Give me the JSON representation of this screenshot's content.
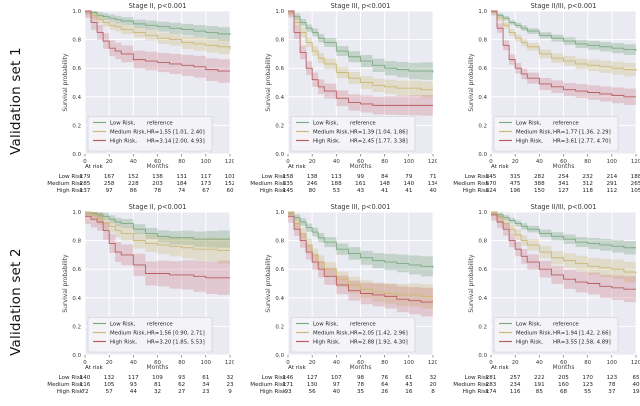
{
  "figure": {
    "rows": [
      {
        "label": "Validation set 1"
      },
      {
        "label": "Validation set 2"
      }
    ]
  },
  "shared": {
    "ylabel": "Survival probability",
    "xlabel": "Months",
    "at_risk_label": "At risk",
    "x_ticks": [
      0,
      20,
      40,
      60,
      80,
      100,
      120
    ],
    "y_ticks": [
      0.0,
      0.2,
      0.4,
      0.6,
      0.8,
      1.0
    ],
    "xlim": [
      0,
      120
    ],
    "ylim": [
      0.0,
      1.0
    ],
    "plot_bg": "#eaeaf2",
    "grid_color": "#ffffff",
    "legend_bg": "#f4f4f8",
    "legend_border": "#c9c9d4",
    "title_color": "#333333",
    "text_color": "#333333",
    "colors": {
      "low": {
        "line": "#7cab81",
        "fill": "rgba(106,158,113,0.30)"
      },
      "medium": {
        "line": "#ccb974",
        "fill": "rgba(204,185,116,0.30)"
      },
      "high": {
        "line": "#ba5e62",
        "fill": "rgba(196,78,82,0.22)"
      }
    }
  },
  "chart_data": [
    {
      "type": "line",
      "title": "Stage II, p<0.001",
      "validation_set": "Validation set 1",
      "xlabel": "Months",
      "ylabel": "Survival probability",
      "xlim": [
        0,
        120
      ],
      "ylim": [
        0.0,
        1.0
      ],
      "legend": [
        {
          "label": "Low Risk,",
          "value": "reference"
        },
        {
          "label": "Medium Risk,",
          "value": "HR=1.55 [1.01, 2.40]"
        },
        {
          "label": "High Risk,",
          "value": "HR=3.14 [2.00, 4.93]"
        }
      ],
      "x": [
        0,
        5,
        10,
        15,
        20,
        25,
        30,
        40,
        50,
        60,
        70,
        80,
        90,
        100,
        110,
        120
      ],
      "series": [
        {
          "key": "low",
          "name": "Low Risk",
          "y": [
            1.0,
            0.99,
            0.97,
            0.96,
            0.95,
            0.94,
            0.93,
            0.91,
            0.9,
            0.89,
            0.88,
            0.87,
            0.86,
            0.85,
            0.84,
            0.83
          ],
          "band": [
            0.02,
            0.05
          ]
        },
        {
          "key": "medium",
          "name": "Medium Risk",
          "y": [
            1.0,
            0.97,
            0.94,
            0.92,
            0.9,
            0.89,
            0.87,
            0.85,
            0.83,
            0.81,
            0.8,
            0.78,
            0.77,
            0.76,
            0.75,
            0.73
          ],
          "band": [
            0.025,
            0.055
          ]
        },
        {
          "key": "high",
          "name": "High Risk",
          "y": [
            1.0,
            0.92,
            0.85,
            0.79,
            0.74,
            0.72,
            0.7,
            0.66,
            0.65,
            0.64,
            0.63,
            0.62,
            0.61,
            0.59,
            0.58,
            0.58
          ],
          "band": [
            0.05,
            0.085
          ]
        }
      ],
      "at_risk": {
        "columns": [
          0,
          20,
          40,
          60,
          80,
          100,
          120
        ],
        "rows": [
          {
            "name": "Low Risk",
            "values": [
              179,
              167,
              152,
              138,
              131,
              117,
              101
            ]
          },
          {
            "name": "Medium Risk",
            "values": [
              285,
              258,
              228,
              203,
              184,
              173,
              152
            ]
          },
          {
            "name": "High Risk",
            "values": [
              137,
              97,
              86,
              78,
              74,
              67,
              60
            ]
          }
        ]
      }
    },
    {
      "type": "line",
      "title": "Stage III, p<0.001",
      "validation_set": "Validation set 1",
      "xlabel": "Months",
      "ylabel": "Survival probability",
      "xlim": [
        0,
        120
      ],
      "ylim": [
        0.0,
        1.0
      ],
      "legend": [
        {
          "label": "Low Risk,",
          "value": "reference"
        },
        {
          "label": "Medium Risk,",
          "value": "HR=1.39 [1.04, 1.86]"
        },
        {
          "label": "High Risk,",
          "value": "HR=2.45 [1.77, 3.38]"
        }
      ],
      "x": [
        0,
        5,
        10,
        15,
        20,
        25,
        30,
        40,
        50,
        60,
        70,
        80,
        90,
        100,
        110,
        120
      ],
      "series": [
        {
          "key": "low",
          "name": "Low Risk",
          "y": [
            1.0,
            0.96,
            0.92,
            0.88,
            0.85,
            0.81,
            0.78,
            0.72,
            0.68,
            0.65,
            0.62,
            0.6,
            0.59,
            0.58,
            0.58,
            0.57
          ],
          "band": [
            0.02,
            0.065
          ]
        },
        {
          "key": "medium",
          "name": "Medium Risk",
          "y": [
            1.0,
            0.92,
            0.85,
            0.78,
            0.72,
            0.67,
            0.63,
            0.57,
            0.53,
            0.5,
            0.48,
            0.47,
            0.46,
            0.46,
            0.45,
            0.45
          ],
          "band": [
            0.03,
            0.06
          ]
        },
        {
          "key": "high",
          "name": "High Risk",
          "y": [
            1.0,
            0.85,
            0.71,
            0.6,
            0.52,
            0.47,
            0.44,
            0.39,
            0.36,
            0.35,
            0.34,
            0.34,
            0.34,
            0.34,
            0.34,
            0.34
          ],
          "band": [
            0.045,
            0.075
          ]
        }
      ],
      "at_risk": {
        "columns": [
          0,
          20,
          40,
          60,
          80,
          100,
          120
        ],
        "rows": [
          {
            "name": "Low Risk",
            "values": [
              158,
              138,
              113,
              99,
              84,
              79,
              71
            ]
          },
          {
            "name": "Medium Risk",
            "values": [
              335,
              246,
              188,
              161,
              148,
              140,
              134
            ]
          },
          {
            "name": "High Risk",
            "values": [
              145,
              80,
              53,
              43,
              41,
              41,
              40
            ]
          }
        ]
      }
    },
    {
      "type": "line",
      "title": "Stage II/III, p<0.001",
      "validation_set": "Validation set 1",
      "xlabel": "Months",
      "ylabel": "Survival probability",
      "xlim": [
        0,
        120
      ],
      "ylim": [
        0.0,
        1.0
      ],
      "legend": [
        {
          "label": "Low Risk,",
          "value": "reference"
        },
        {
          "label": "Medium Risk,",
          "value": "HR=1.77 [1.36, 2.29]"
        },
        {
          "label": "High Risk,",
          "value": "HR=3.61 [2.77, 4.70]"
        }
      ],
      "x": [
        0,
        5,
        10,
        15,
        20,
        25,
        30,
        40,
        50,
        60,
        70,
        80,
        90,
        100,
        110,
        120
      ],
      "series": [
        {
          "key": "low",
          "name": "Low Risk",
          "y": [
            1.0,
            0.97,
            0.95,
            0.92,
            0.9,
            0.88,
            0.86,
            0.83,
            0.81,
            0.79,
            0.77,
            0.76,
            0.75,
            0.74,
            0.73,
            0.72
          ],
          "band": [
            0.013,
            0.04
          ]
        },
        {
          "key": "medium",
          "name": "Medium Risk",
          "y": [
            1.0,
            0.95,
            0.9,
            0.85,
            0.81,
            0.78,
            0.75,
            0.7,
            0.67,
            0.65,
            0.63,
            0.62,
            0.61,
            0.6,
            0.59,
            0.58
          ],
          "band": [
            0.02,
            0.05
          ]
        },
        {
          "key": "high",
          "name": "High Risk",
          "y": [
            1.0,
            0.88,
            0.76,
            0.66,
            0.6,
            0.56,
            0.53,
            0.49,
            0.47,
            0.45,
            0.44,
            0.43,
            0.42,
            0.41,
            0.4,
            0.4
          ],
          "band": [
            0.032,
            0.06
          ]
        }
      ],
      "at_risk": {
        "columns": [
          0,
          20,
          40,
          60,
          80,
          100,
          120
        ],
        "rows": [
          {
            "name": "Low Risk",
            "values": [
              345,
              315,
              282,
              254,
              232,
              214,
              188
            ]
          },
          {
            "name": "Medium Risk",
            "values": [
              570,
              475,
              388,
              341,
              312,
              291,
              265
            ]
          },
          {
            "name": "High Risk",
            "values": [
              324,
              196,
              150,
              127,
              118,
              112,
              105
            ]
          }
        ]
      }
    },
    {
      "type": "line",
      "title": "Stage II, p<0.001",
      "validation_set": "Validation set 2",
      "xlabel": "Months",
      "ylabel": "Survival probability",
      "xlim": [
        0,
        120
      ],
      "ylim": [
        0.0,
        1.0
      ],
      "legend": [
        {
          "label": "Low Risk,",
          "value": "reference"
        },
        {
          "label": "Medium Risk,",
          "value": "HR=1.56 [0.90, 2.71]"
        },
        {
          "label": "High Risk,",
          "value": "HR=3.20 [1.85, 5.53]"
        }
      ],
      "x": [
        0,
        5,
        10,
        15,
        20,
        25,
        30,
        40,
        50,
        60,
        70,
        80,
        90,
        100,
        110,
        120
      ],
      "series": [
        {
          "key": "low",
          "name": "Low Risk",
          "y": [
            1.0,
            0.99,
            0.98,
            0.97,
            0.95,
            0.93,
            0.92,
            0.88,
            0.85,
            0.83,
            0.82,
            0.82,
            0.81,
            0.81,
            0.81,
            0.81
          ],
          "band": [
            0.02,
            0.065
          ]
        },
        {
          "key": "medium",
          "name": "Medium Risk",
          "y": [
            1.0,
            0.98,
            0.95,
            0.92,
            0.9,
            0.87,
            0.85,
            0.8,
            0.78,
            0.77,
            0.76,
            0.75,
            0.74,
            0.74,
            0.73,
            0.73
          ],
          "band": [
            0.035,
            0.095
          ]
        },
        {
          "key": "high",
          "name": "High Risk",
          "y": [
            0.97,
            0.95,
            0.93,
            0.87,
            0.78,
            0.72,
            0.7,
            0.63,
            0.57,
            0.57,
            0.56,
            0.56,
            0.55,
            0.54,
            0.54,
            0.54
          ],
          "band": [
            0.055,
            0.125
          ]
        }
      ],
      "at_risk": {
        "columns": [
          0,
          20,
          40,
          60,
          80,
          100,
          120
        ],
        "rows": [
          {
            "name": "Low Risk",
            "values": [
              140,
              132,
              117,
              109,
              93,
              61,
              32
            ]
          },
          {
            "name": "Medium Risk",
            "values": [
              116,
              105,
              93,
              81,
              62,
              34,
              23
            ]
          },
          {
            "name": "High Risk",
            "values": [
              72,
              57,
              44,
              32,
              27,
              23,
              9
            ]
          }
        ]
      }
    },
    {
      "type": "line",
      "title": "Stage III, p<0.001",
      "validation_set": "Validation set 2",
      "xlabel": "Months",
      "ylabel": "Survival probability",
      "xlim": [
        0,
        120
      ],
      "ylim": [
        0.0,
        1.0
      ],
      "legend": [
        {
          "label": "Low Risk,",
          "value": "reference"
        },
        {
          "label": "Medium Risk,",
          "value": "HR=2.05 [1.42, 2.96]"
        },
        {
          "label": "High Risk,",
          "value": "HR=2.88 [1.92, 4.30]"
        }
      ],
      "x": [
        0,
        5,
        10,
        15,
        20,
        25,
        30,
        40,
        50,
        60,
        70,
        80,
        90,
        100,
        110,
        120
      ],
      "series": [
        {
          "key": "low",
          "name": "Low Risk",
          "y": [
            1.0,
            0.96,
            0.93,
            0.89,
            0.86,
            0.82,
            0.79,
            0.74,
            0.71,
            0.68,
            0.66,
            0.65,
            0.64,
            0.63,
            0.62,
            0.61
          ],
          "band": [
            0.022,
            0.075
          ]
        },
        {
          "key": "medium",
          "name": "Medium Risk",
          "y": [
            1.0,
            0.92,
            0.85,
            0.77,
            0.7,
            0.65,
            0.6,
            0.53,
            0.49,
            0.46,
            0.44,
            0.43,
            0.42,
            0.42,
            0.41,
            0.41
          ],
          "band": [
            0.035,
            0.09
          ]
        },
        {
          "key": "high",
          "name": "High Risk",
          "y": [
            0.97,
            0.88,
            0.8,
            0.72,
            0.65,
            0.6,
            0.55,
            0.49,
            0.45,
            0.43,
            0.42,
            0.41,
            0.39,
            0.38,
            0.37,
            0.37
          ],
          "band": [
            0.045,
            0.105
          ]
        }
      ],
      "at_risk": {
        "columns": [
          0,
          20,
          40,
          60,
          80,
          100,
          120
        ],
        "rows": [
          {
            "name": "Low Risk",
            "values": [
              146,
              127,
              107,
              98,
              76,
              61,
              32
            ]
          },
          {
            "name": "Medium Risk",
            "values": [
              171,
              130,
              97,
              78,
              64,
              43,
              20
            ]
          },
          {
            "name": "High Risk",
            "values": [
              93,
              56,
              40,
              35,
              26,
              16,
              8
            ]
          }
        ]
      }
    },
    {
      "type": "line",
      "title": "Stage II/III, p<0.001",
      "validation_set": "Validation set 2",
      "xlabel": "Months",
      "ylabel": "Survival probability",
      "xlim": [
        0,
        120
      ],
      "ylim": [
        0.0,
        1.0
      ],
      "legend": [
        {
          "label": "Low Risk,",
          "value": "reference"
        },
        {
          "label": "Medium Risk,",
          "value": "HR=1.94 [1.42, 2.66]"
        },
        {
          "label": "High Risk,",
          "value": "HR=3.55 [2.58, 4.89]"
        }
      ],
      "x": [
        0,
        5,
        10,
        15,
        20,
        25,
        30,
        40,
        50,
        60,
        70,
        80,
        90,
        100,
        110,
        120
      ],
      "series": [
        {
          "key": "low",
          "name": "Low Risk",
          "y": [
            1.0,
            0.98,
            0.96,
            0.94,
            0.92,
            0.9,
            0.88,
            0.85,
            0.83,
            0.81,
            0.79,
            0.78,
            0.77,
            0.76,
            0.75,
            0.75
          ],
          "band": [
            0.015,
            0.05
          ]
        },
        {
          "key": "medium",
          "name": "Medium Risk",
          "y": [
            1.0,
            0.96,
            0.92,
            0.88,
            0.84,
            0.8,
            0.77,
            0.72,
            0.68,
            0.66,
            0.64,
            0.62,
            0.61,
            0.6,
            0.58,
            0.57
          ],
          "band": [
            0.027,
            0.075
          ]
        },
        {
          "key": "high",
          "name": "High Risk",
          "y": [
            0.98,
            0.93,
            0.88,
            0.8,
            0.74,
            0.69,
            0.65,
            0.6,
            0.56,
            0.53,
            0.51,
            0.5,
            0.48,
            0.47,
            0.46,
            0.46
          ],
          "band": [
            0.04,
            0.095
          ]
        }
      ],
      "at_risk": {
        "columns": [
          0,
          20,
          40,
          60,
          80,
          100,
          120
        ],
        "rows": [
          {
            "name": "Low Risk",
            "values": [
              281,
              257,
              222,
              205,
              170,
              123,
              65
            ]
          },
          {
            "name": "Medium Risk",
            "values": [
              283,
              234,
              191,
              160,
              123,
              78,
              40
            ]
          },
          {
            "name": "High Risk",
            "values": [
              174,
              116,
              85,
              68,
              55,
              37,
              19
            ]
          }
        ]
      }
    }
  ]
}
